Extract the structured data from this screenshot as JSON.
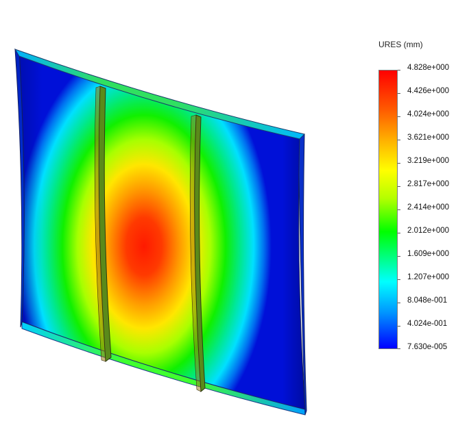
{
  "legend": {
    "title": "URES (mm)",
    "ticks": [
      "4.828e+000",
      "4.426e+000",
      "4.024e+000",
      "3.621e+000",
      "3.219e+000",
      "2.817e+000",
      "2.414e+000",
      "2.012e+000",
      "1.609e+000",
      "1.207e+000",
      "8.048e-001",
      "4.024e-001",
      "7.630e-005"
    ],
    "colors": {
      "max": "#ff0000",
      "high": "#ffb000",
      "mid_high": "#ffff00",
      "mid": "#00ff00",
      "mid_low": "#00ffff",
      "min": "#0000ff"
    }
  },
  "model": {
    "type": "curved-panel-with-two-stiffeners",
    "colormap": "rainbow"
  }
}
